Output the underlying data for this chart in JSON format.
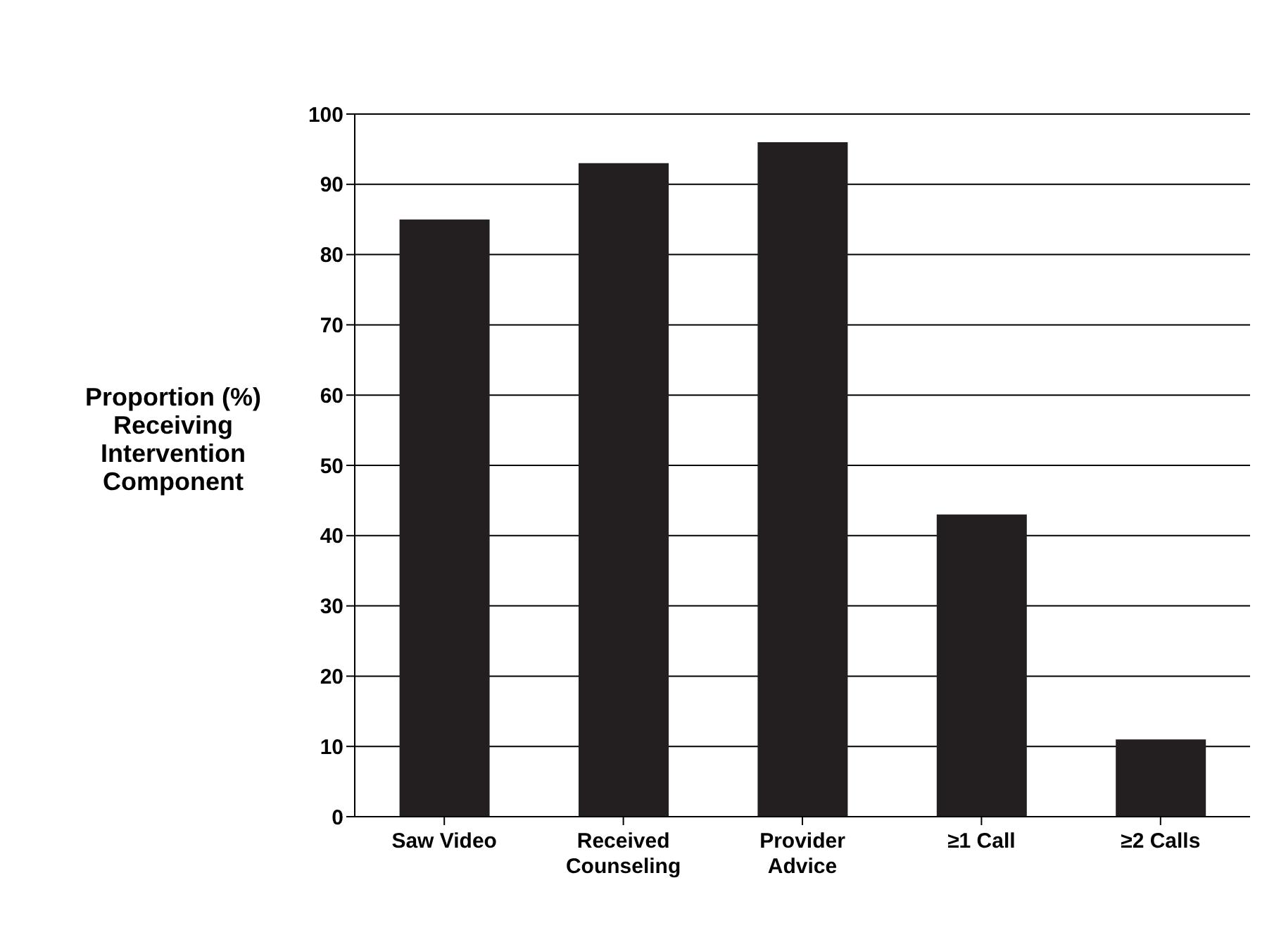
{
  "chart_data": {
    "type": "bar",
    "ylabel": "Proportion (%) Receiving Intervention Component",
    "categories": [
      "Saw Video",
      "Received Counseling",
      "Provider Advice",
      "≥1 Call",
      "≥2 Calls"
    ],
    "values": [
      85,
      93,
      96,
      43,
      11
    ],
    "color": "#231f20",
    "ylim": [
      0,
      100
    ],
    "yticks": [
      0,
      10,
      20,
      30,
      40,
      50,
      60,
      70,
      80,
      90,
      100
    ],
    "grid": "y"
  }
}
